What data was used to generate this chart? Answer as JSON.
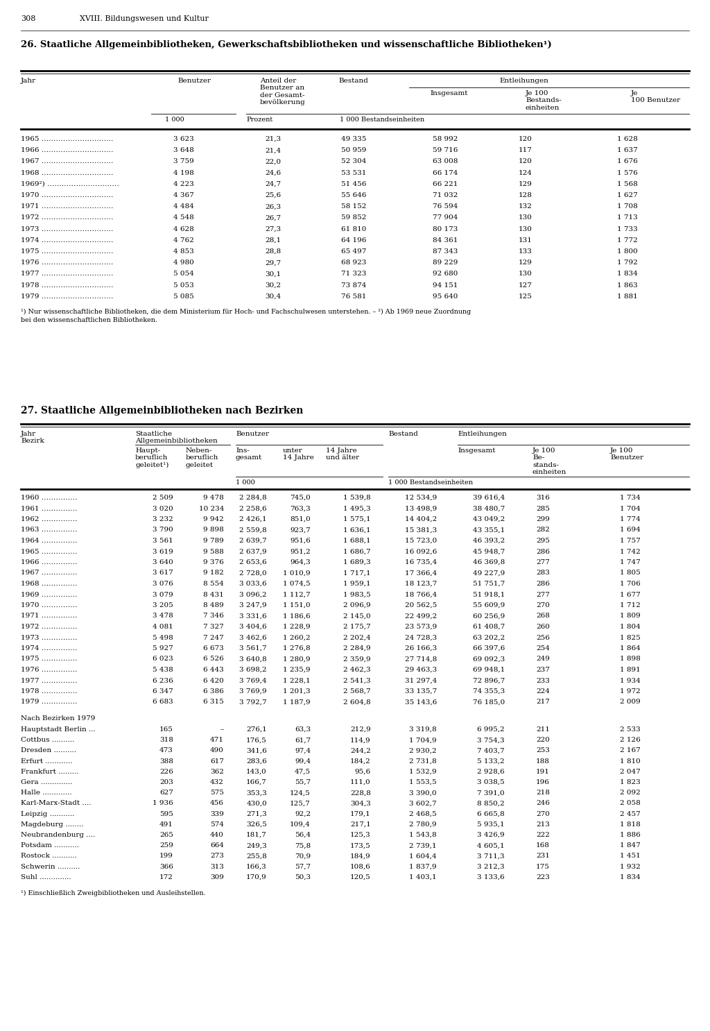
{
  "table1_title": "26. Staatliche Allgemeinbibliotheken, Gewerkschaftsbibliotheken und wissenschaftliche Bibliotheken¹)",
  "table1_data": [
    [
      "1965",
      "3 623",
      "21,3",
      "49 335",
      "58 992",
      "120",
      "1 628"
    ],
    [
      "1966",
      "3 648",
      "21,4",
      "50 959",
      "59 716",
      "117",
      "1 637"
    ],
    [
      "1967",
      "3 759",
      "22,0",
      "52 304",
      "63 008",
      "120",
      "1 676"
    ],
    [
      "1968",
      "4 198",
      "24,6",
      "53 531",
      "66 174",
      "124",
      "1 576"
    ],
    [
      "1969²)",
      "4 223",
      "24,7",
      "51 456",
      "66 221",
      "129",
      "1 568"
    ],
    [
      "1970",
      "4 367",
      "25,6",
      "55 646",
      "71 032",
      "128",
      "1 627"
    ],
    [
      "1971",
      "4 484",
      "26,3",
      "58 152",
      "76 594",
      "132",
      "1 708"
    ],
    [
      "1972",
      "4 548",
      "26,7",
      "59 852",
      "77 904",
      "130",
      "1 713"
    ],
    [
      "1973",
      "4 628",
      "27,3",
      "61 810",
      "80 173",
      "130",
      "1 733"
    ],
    [
      "1974",
      "4 762",
      "28,1",
      "64 196",
      "84 361",
      "131",
      "1 772"
    ],
    [
      "1975",
      "4 853",
      "28,8",
      "65 497",
      "87 343",
      "133",
      "1 800"
    ],
    [
      "1976",
      "4 980",
      "29,7",
      "68 923",
      "89 229",
      "129",
      "1 792"
    ],
    [
      "1977",
      "5 054",
      "30,1",
      "71 323",
      "92 680",
      "130",
      "1 834"
    ],
    [
      "1978",
      "5 053",
      "30,2",
      "73 874",
      "94 151",
      "127",
      "1 863"
    ],
    [
      "1979",
      "5 085",
      "30,4",
      "76 581",
      "95 640",
      "125",
      "1 881"
    ]
  ],
  "table1_footnote1": "¹) Nur wissenschaftliche Bibliotheken, die dem Ministerium für Hoch- und Fachschulwesen unterstehen. – ²) Ab 1969 neue Zuordnung",
  "table1_footnote2": "bei den wissenschaftlichen Bibliotheken.",
  "table2_title": "27. Staatliche Allgemeinbibliotheken nach Bezirken",
  "table2_data_years": [
    [
      "1960",
      "2 509",
      "9 478",
      "2 284,8",
      "745,0",
      "1 539,8",
      "12 534,9",
      "39 616,4",
      "316",
      "1 734"
    ],
    [
      "1961",
      "3 020",
      "10 234",
      "2 258,6",
      "763,3",
      "1 495,3",
      "13 498,9",
      "38 480,7",
      "285",
      "1 704"
    ],
    [
      "1962",
      "3 232",
      "9 942",
      "2 426,1",
      "851,0",
      "1 575,1",
      "14 404,2",
      "43 049,2",
      "299",
      "1 774"
    ],
    [
      "1963",
      "3 790",
      "9 898",
      "2 559,8",
      "923,7",
      "1 636,1",
      "15 381,3",
      "43 355,1",
      "282",
      "1 694"
    ],
    [
      "1964",
      "3 561",
      "9 789",
      "2 639,7",
      "951,6",
      "1 688,1",
      "15 723,0",
      "46 393,2",
      "295",
      "1 757"
    ],
    [
      "1965",
      "3 619",
      "9 588",
      "2 637,9",
      "951,2",
      "1 686,7",
      "16 092,6",
      "45 948,7",
      "286",
      "1 742"
    ],
    [
      "1966",
      "3 640",
      "9 376",
      "2 653,6",
      "964,3",
      "1 689,3",
      "16 735,4",
      "46 369,8",
      "277",
      "1 747"
    ],
    [
      "1967",
      "3 617",
      "9 182",
      "2 728,0",
      "1 010,9",
      "1 717,1",
      "17 366,4",
      "49 227,9",
      "283",
      "1 805"
    ],
    [
      "1968",
      "3 076",
      "8 554",
      "3 033,6",
      "1 074,5",
      "1 959,1",
      "18 123,7",
      "51 751,7",
      "286",
      "1 706"
    ],
    [
      "1969",
      "3 079",
      "8 431",
      "3 096,2",
      "1 112,7",
      "1 983,5",
      "18 766,4",
      "51 918,1",
      "277",
      "1 677"
    ],
    [
      "1970",
      "3 205",
      "8 489",
      "3 247,9",
      "1 151,0",
      "2 096,9",
      "20 562,5",
      "55 609,9",
      "270",
      "1 712"
    ],
    [
      "1971",
      "3 478",
      "7 346",
      "3 331,6",
      "1 186,6",
      "2 145,0",
      "22 499,2",
      "60 256,9",
      "268",
      "1 809"
    ],
    [
      "1972",
      "4 081",
      "7 327",
      "3 404,6",
      "1 228,9",
      "2 175,7",
      "23 573,9",
      "61 408,7",
      "260",
      "1 804"
    ],
    [
      "1973",
      "5 498",
      "7 247",
      "3 462,6",
      "1 260,2",
      "2 202,4",
      "24 728,3",
      "63 202,2",
      "256",
      "1 825"
    ],
    [
      "1974",
      "5 927",
      "6 673",
      "3 561,7",
      "1 276,8",
      "2 284,9",
      "26 166,3",
      "66 397,6",
      "254",
      "1 864"
    ],
    [
      "1975",
      "6 023",
      "6 526",
      "3 640,8",
      "1 280,9",
      "2 359,9",
      "27 714,8",
      "69 092,3",
      "249",
      "1 898"
    ],
    [
      "1976",
      "5 438",
      "6 443",
      "3 698,2",
      "1 235,9",
      "2 462,3",
      "29 463,3",
      "69 948,1",
      "237",
      "1 891"
    ],
    [
      "1977",
      "6 236",
      "6 420",
      "3 769,4",
      "1 228,1",
      "2 541,3",
      "31 297,4",
      "72 896,7",
      "233",
      "1 934"
    ],
    [
      "1978",
      "6 347",
      "6 386",
      "3 769,9",
      "1 201,3",
      "2 568,7",
      "33 135,7",
      "74 355,3",
      "224",
      "1 972"
    ],
    [
      "1979",
      "6 683",
      "6 315",
      "3 792,7",
      "1 187,9",
      "2 604,8",
      "35 143,6",
      "76 185,0",
      "217",
      "2 009"
    ]
  ],
  "table2_section2_header": "Nach Bezirken 1979",
  "table2_data_bezirke": [
    [
      "Hauptstadt Berlin ...",
      "165",
      "–",
      "276,1",
      "63,3",
      "212,9",
      "3 319,8",
      "6 995,2",
      "211",
      "2 533"
    ],
    [
      "Cottbus ..........",
      "318",
      "471",
      "176,5",
      "61,7",
      "114,9",
      "1 704,9",
      "3 754,3",
      "220",
      "2 126"
    ],
    [
      "Dresden ..........",
      "473",
      "490",
      "341,6",
      "97,4",
      "244,2",
      "2 930,2",
      "7 403,7",
      "253",
      "2 167"
    ],
    [
      "Erfurt ............",
      "388",
      "617",
      "283,6",
      "99,4",
      "184,2",
      "2 731,8",
      "5 133,2",
      "188",
      "1 810"
    ],
    [
      "Frankfurt .........",
      "226",
      "362",
      "143,0",
      "47,5",
      "95,6",
      "1 532,9",
      "2 928,6",
      "191",
      "2 047"
    ],
    [
      "Gera ..............",
      "203",
      "432",
      "166,7",
      "55,7",
      "111,0",
      "1 553,5",
      "3 038,5",
      "196",
      "1 823"
    ],
    [
      "Halle .............",
      "627",
      "575",
      "353,3",
      "124,5",
      "228,8",
      "3 390,0",
      "7 391,0",
      "218",
      "2 092"
    ],
    [
      "Karl-Marx-Stadt ....",
      "1 936",
      "456",
      "430,0",
      "125,7",
      "304,3",
      "3 602,7",
      "8 850,2",
      "246",
      "2 058"
    ],
    [
      "Leipzig ...........",
      "595",
      "339",
      "271,3",
      "92,2",
      "179,1",
      "2 468,5",
      "6 665,8",
      "270",
      "2 457"
    ],
    [
      "Magdeburg ........",
      "491",
      "574",
      "326,5",
      "109,4",
      "217,1",
      "2 780,9",
      "5 935,1",
      "213",
      "1 818"
    ],
    [
      "Neubrandenburg ....",
      "265",
      "440",
      "181,7",
      "56,4",
      "125,3",
      "1 543,8",
      "3 426,9",
      "222",
      "1 886"
    ],
    [
      "Potsdam ...........",
      "259",
      "664",
      "249,3",
      "75,8",
      "173,5",
      "2 739,1",
      "4 605,1",
      "168",
      "1 847"
    ],
    [
      "Rostock ...........",
      "199",
      "273",
      "255,8",
      "70,9",
      "184,9",
      "1 604,4",
      "3 711,3",
      "231",
      "1 451"
    ],
    [
      "Schwerin ..........",
      "366",
      "313",
      "166,3",
      "57,7",
      "108,6",
      "1 837,9",
      "3 212,3",
      "175",
      "1 932"
    ],
    [
      "Suhl ..............",
      "172",
      "309",
      "170,9",
      "50,3",
      "120,5",
      "1 403,1",
      "3 133,6",
      "223",
      "1 834"
    ]
  ],
  "table2_footnote": "¹) Einschließlich Zweigbibliotheken und Ausleihstellen."
}
